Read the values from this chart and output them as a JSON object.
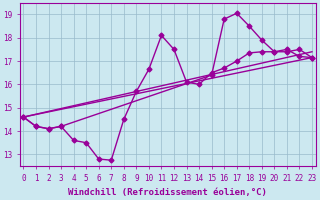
{
  "bg_color": "#cce8f0",
  "grid_color": "#99bbcc",
  "line_color": "#990099",
  "xlim": [
    -0.3,
    23.3
  ],
  "ylim": [
    12.5,
    19.5
  ],
  "yticks": [
    13,
    14,
    15,
    16,
    17,
    18,
    19
  ],
  "xticks": [
    0,
    1,
    2,
    3,
    4,
    5,
    6,
    7,
    8,
    9,
    10,
    11,
    12,
    13,
    14,
    15,
    16,
    17,
    18,
    19,
    20,
    21,
    22,
    23
  ],
  "line1_x": [
    0,
    1,
    2,
    3,
    4,
    5,
    6,
    7,
    8,
    9,
    10,
    11,
    12,
    13,
    14,
    15,
    16,
    17,
    18,
    19,
    20,
    21,
    22,
    23
  ],
  "line1_y": [
    14.6,
    14.2,
    14.1,
    14.2,
    13.6,
    13.5,
    12.8,
    12.75,
    14.5,
    15.7,
    16.65,
    18.1,
    17.5,
    16.1,
    16.0,
    16.5,
    16.7,
    17.0,
    17.35,
    17.4,
    17.4,
    17.5,
    17.2,
    17.15
  ],
  "line2_x": [
    0,
    1,
    2,
    3,
    15,
    16,
    17,
    18,
    19,
    20,
    21,
    22,
    23
  ],
  "line2_y": [
    14.6,
    14.2,
    14.1,
    14.2,
    16.4,
    18.8,
    19.05,
    18.5,
    17.9,
    17.4,
    17.4,
    17.5,
    17.15
  ],
  "line3_x": [
    0,
    23
  ],
  "line3_y": [
    14.6,
    17.15
  ],
  "line4_x": [
    0,
    23
  ],
  "line4_y": [
    14.6,
    17.4
  ],
  "xlabel": "Windchill (Refroidissement éolien,°C)",
  "tick_fontsize": 5.5,
  "label_fontsize": 6.5
}
